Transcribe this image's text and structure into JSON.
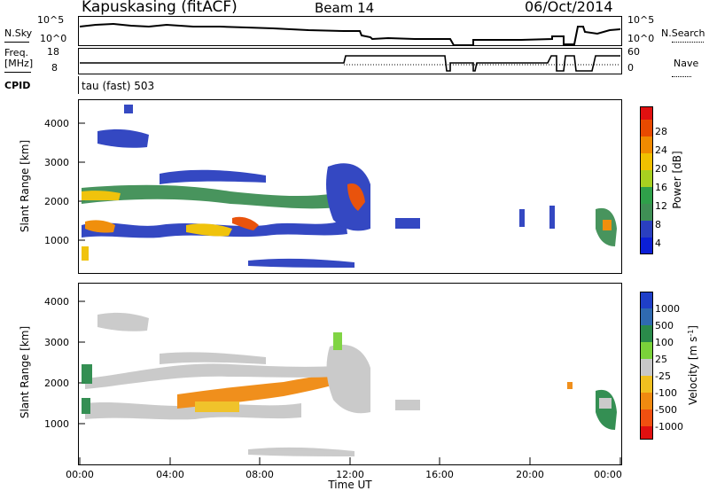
{
  "header": {
    "station": "Kapuskasing (fitACF)",
    "beam": "Beam 14",
    "date": "06/Oct/2014"
  },
  "nsky_panel": {
    "left_label": "N.Sky",
    "right_label": "N.Search",
    "left_ticks": [
      "10^5",
      "10^0"
    ],
    "right_ticks": [
      "10^5",
      "10^0"
    ]
  },
  "freq_panel": {
    "left_label_1": "Freq.",
    "left_label_2": "[MHz]",
    "right_label": "Nave",
    "left_ticks": [
      "18",
      "8"
    ],
    "right_ticks": [
      "60",
      "0"
    ]
  },
  "cpid_panel": {
    "left_label": "CPID",
    "mode_text": "tau (fast) 503"
  },
  "colors": {
    "power": [
      "#0b1fd6",
      "#2a3fbf",
      "#3f8f55",
      "#2fa04a",
      "#a8d020",
      "#f0c000",
      "#f08a00",
      "#e84a00",
      "#e01010"
    ],
    "velocity": [
      "#1f3fc8",
      "#2f6ab0",
      "#2a8a4a",
      "#7ad23a",
      "#c8c8c8",
      "#f0c020",
      "#f08a10",
      "#f05010",
      "#e01010"
    ]
  },
  "chart_data": [
    {
      "type": "heatmap",
      "name": "Power",
      "ylabel": "Slant Range [km]",
      "yticks": [
        1000,
        2000,
        3000,
        4000
      ],
      "ylim": [
        200,
        4600
      ],
      "xlim": [
        0,
        24
      ],
      "colorbar": {
        "label": "Power [dB]",
        "range": [
          0,
          32
        ],
        "ticks": [
          "4",
          "8",
          "12",
          "16",
          "20",
          "24",
          "28"
        ]
      },
      "grid": false
    },
    {
      "type": "heatmap",
      "name": "Velocity",
      "ylabel": "Slant Range [km]",
      "yticks": [
        1000,
        2000,
        3000,
        4000
      ],
      "ylim": [
        200,
        4600
      ],
      "xlim": [
        0,
        24
      ],
      "xlabel": "Time UT",
      "xticks": [
        "00:00",
        "04:00",
        "08:00",
        "12:00",
        "16:00",
        "20:00",
        "00:00"
      ],
      "colorbar": {
        "label": "Velocity [m s",
        "label_sup": "-1",
        "label_end": "]",
        "ticks": [
          "1000",
          "500",
          "100",
          "25",
          "-25",
          "-100",
          "-500",
          "-1000"
        ]
      },
      "grid": false
    }
  ]
}
